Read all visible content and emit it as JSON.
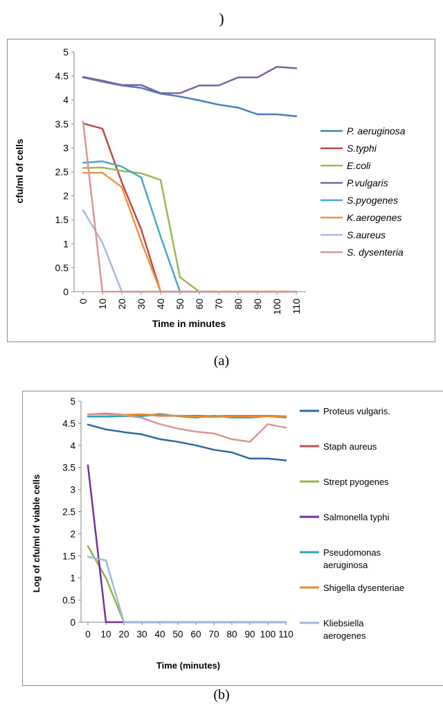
{
  "page": {
    "top_fragment": ")",
    "caption_a": "(a)",
    "caption_b": "(b)"
  },
  "chart_data": [
    {
      "type": "line",
      "panel": "a",
      "title": "",
      "xlabel": "Time in minutes",
      "ylabel": "cfu/ml of cells",
      "categories": [
        "0",
        "10",
        "20",
        "30",
        "40",
        "50",
        "60",
        "70",
        "80",
        "90",
        "100",
        "110"
      ],
      "ylim": [
        0,
        5
      ],
      "yticks": [
        "0",
        "0.5",
        "1",
        "1.5",
        "2",
        "2.5",
        "3",
        "3.5",
        "4",
        "4.5",
        "5"
      ],
      "grid": false,
      "legend_position": "right",
      "series": [
        {
          "name": "P. aeruginosa",
          "color": "#4a7ebb",
          "values": [
            4.47,
            4.38,
            4.3,
            4.25,
            4.13,
            4.07,
            3.99,
            3.9,
            3.84,
            3.7,
            3.7,
            3.66
          ]
        },
        {
          "name": "S.typhi",
          "color": "#be4b48",
          "values": [
            3.51,
            3.4,
            2.28,
            1.3,
            0.0,
            0.0,
            0.0,
            0.0,
            0.0,
            0.0,
            0.0,
            0.0
          ]
        },
        {
          "name": "E.coli",
          "color": "#98b954",
          "values": [
            2.58,
            2.59,
            2.52,
            2.47,
            2.33,
            0.3,
            0.0,
            0.0,
            0.0,
            0.0,
            0.0,
            0.0
          ]
        },
        {
          "name": "P.vulgaris",
          "color": "#7d60a0",
          "values": [
            4.48,
            4.4,
            4.31,
            4.31,
            4.14,
            4.14,
            4.3,
            4.3,
            4.47,
            4.47,
            4.69,
            4.66
          ]
        },
        {
          "name": "S.pyogenes",
          "color": "#46aac5",
          "values": [
            2.69,
            2.72,
            2.61,
            2.38,
            1.15,
            0.0,
            0.0,
            0.0,
            0.0,
            0.0,
            0.0,
            0.0
          ]
        },
        {
          "name": "K.aerogenes",
          "color": "#f69240",
          "values": [
            2.48,
            2.48,
            2.18,
            1.05,
            0.0,
            0.0,
            0.0,
            0.0,
            0.0,
            0.0,
            0.0,
            0.0
          ]
        },
        {
          "name": "S.aureus",
          "color": "#a6b9e0",
          "values": [
            1.7,
            1.02,
            0.0,
            0.0,
            0.0,
            0.0,
            0.0,
            0.0,
            0.0,
            0.0,
            0.0,
            0.0
          ]
        },
        {
          "name": "S. dysenteria",
          "color": "#d99694",
          "values": [
            3.55,
            0.0,
            0.0,
            0.0,
            0.0,
            0.0,
            0.0,
            0.0,
            0.0,
            0.0,
            0.0,
            0.0
          ]
        }
      ]
    },
    {
      "type": "line",
      "panel": "b",
      "title": "",
      "xlabel": "Time (minutes)",
      "ylabel": "Log of cfu/ml of viable cells",
      "categories": [
        "0",
        "10",
        "20",
        "30",
        "40",
        "50",
        "60",
        "70",
        "80",
        "90",
        "100",
        "110"
      ],
      "ylim": [
        0,
        5
      ],
      "yticks": [
        "0",
        "0.5",
        "1",
        "1.5",
        "2",
        "2.5",
        "3",
        "3.5",
        "4",
        "4.5",
        "5"
      ],
      "grid": false,
      "legend_position": "right",
      "series": [
        {
          "name": "Proteus vulgaris.",
          "color": "#2e64a8",
          "values": [
            4.47,
            4.36,
            4.3,
            4.25,
            4.14,
            4.08,
            4.0,
            3.9,
            3.84,
            3.7,
            3.7,
            3.66
          ]
        },
        {
          "name": "Staph aureus",
          "color": "#c0504d",
          "values": [
            4.7,
            4.72,
            4.69,
            4.7,
            4.67,
            4.67,
            4.67,
            4.66,
            4.67,
            4.67,
            4.67,
            4.66
          ]
        },
        {
          "name": "Strept pyogenes",
          "color": "#8fb449",
          "values": [
            1.72,
            1.0,
            0.0,
            0.0,
            0.0,
            0.0,
            0.0,
            0.0,
            0.0,
            0.0,
            0.0,
            0.0
          ]
        },
        {
          "name": "Salmonella typhi",
          "color": "#7030a0",
          "values": [
            3.55,
            0.0,
            0.0,
            0.0,
            0.0,
            0.0,
            0.0,
            0.0,
            0.0,
            0.0,
            0.0,
            0.0
          ]
        },
        {
          "name": "Pseudomonas aeruginosa",
          "color": "#2fa4b5",
          "values": [
            4.65,
            4.65,
            4.66,
            4.66,
            4.71,
            4.66,
            4.63,
            4.67,
            4.63,
            4.63,
            4.66,
            4.63
          ]
        },
        {
          "name": "Shigella dysenteriae",
          "color": "#f08a2c",
          "values": [
            4.7,
            4.7,
            4.69,
            4.7,
            4.68,
            4.67,
            4.65,
            4.64,
            4.66,
            4.66,
            4.66,
            4.66
          ]
        },
        {
          "name": "Kliebsiella aerogenes",
          "color": "#9db7e0",
          "values": [
            1.48,
            1.4,
            0.0,
            0.0,
            0.0,
            0.0,
            0.0,
            0.0,
            0.0,
            0.0,
            0.0,
            0.0
          ]
        },
        {
          "name": "",
          "color": "#d99694",
          "values": [
            4.7,
            4.71,
            4.68,
            4.62,
            4.48,
            4.38,
            4.31,
            4.27,
            4.14,
            4.08,
            4.48,
            4.4
          ]
        }
      ]
    }
  ]
}
